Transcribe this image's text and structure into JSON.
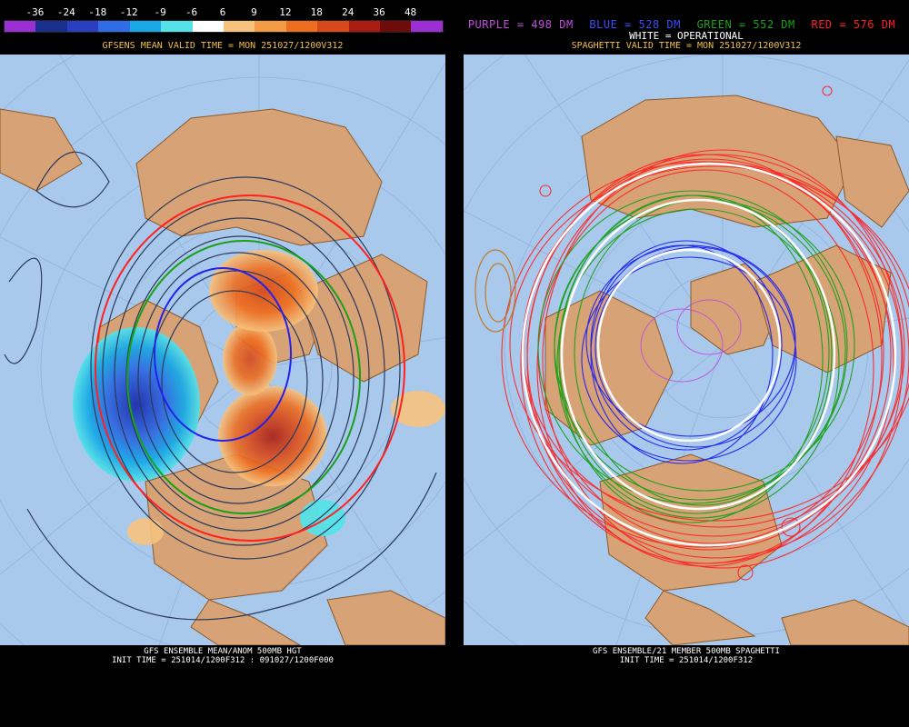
{
  "left": {
    "colorbar": {
      "labels": [
        "-36",
        "-24",
        "-18",
        "-12",
        "-9",
        "-6",
        "6",
        "9",
        "12",
        "18",
        "24",
        "36",
        "48"
      ],
      "colors": [
        "#9b2fd3",
        "#1a2f8c",
        "#2a3fc0",
        "#2f6ce6",
        "#19a8e6",
        "#55e1e8",
        "#ffffff",
        "#f6c27e",
        "#f39b44",
        "#ee6e1f",
        "#d7481a",
        "#aa1b10",
        "#6e0b0b",
        "#9b2fd3"
      ]
    },
    "header": "GFSENS MEAN VALID TIME = MON 251027/1200V312",
    "footer_line1": "GFS ENSEMBLE MEAN/ANOM 500MB HGT",
    "footer_line2": "INIT TIME = 251014/1200F312 : 091027/1200F000"
  },
  "right": {
    "legend": {
      "purple": {
        "text": "PURPLE = 498 DM",
        "color": "#c04ce0"
      },
      "blue": {
        "text": "BLUE = 528 DM",
        "color": "#3a4cff"
      },
      "green": {
        "text": "GREEN = 552 DM",
        "color": "#18a018"
      },
      "red": {
        "text": "RED = 576 DM",
        "color": "#ff2020"
      }
    },
    "operational": "WHITE = OPERATIONAL",
    "header": "SPAGHETTI VALID TIME = MON 251027/1200V312",
    "footer_line1": "GFS ENSEMBLE/21 MEMBER 500MB SPAGHETTI",
    "footer_line2": "INIT TIME = 251014/1200F312"
  },
  "colors": {
    "ocean": "#a9c9ec",
    "land": "#d7a276",
    "header_text": "#f0c040",
    "contour": "#2a3a5c"
  }
}
